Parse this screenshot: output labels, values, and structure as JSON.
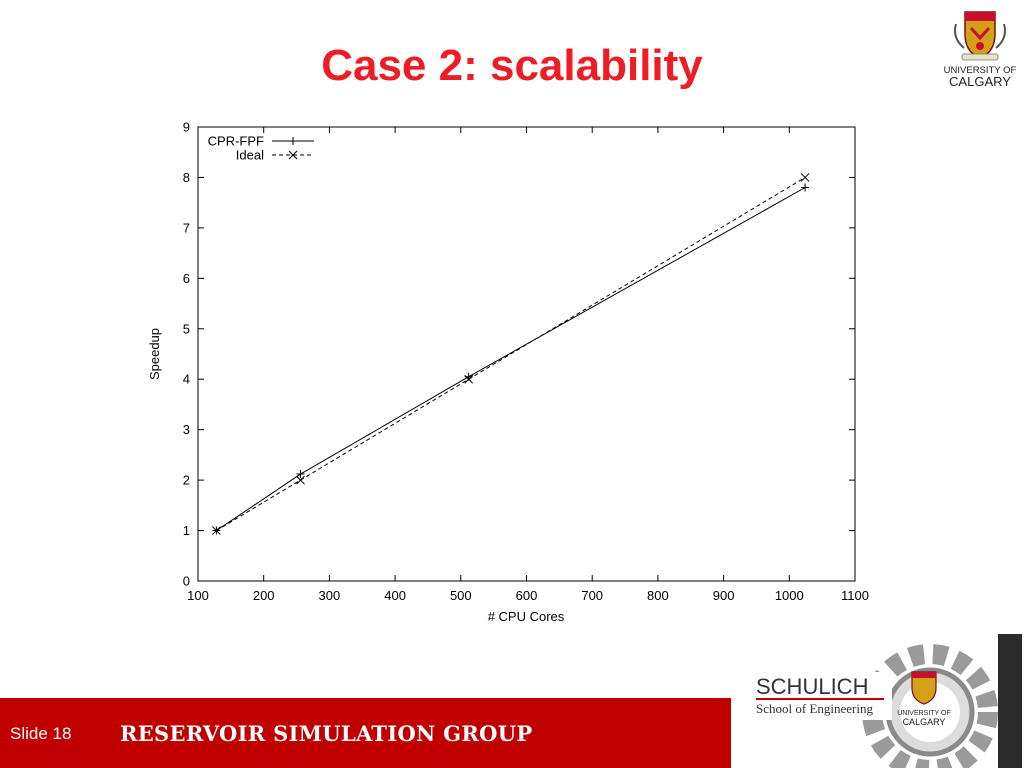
{
  "slide": {
    "title": "Case 2: scalability",
    "number_label": "Slide 18",
    "footer_text": "RESERVOIR SIMULATION GROUP",
    "colors": {
      "title": "#ee1c25",
      "footer_bar": "#c00000",
      "footer_text": "#ffffff"
    }
  },
  "logos": {
    "university": {
      "line1": "UNIVERSITY OF",
      "line2": "CALGARY",
      "icon": "coat-of-arms-icon"
    },
    "schulich": {
      "line1": "SCHULICH",
      "line2": "School of Engineering",
      "badge_line1": "UNIVERSITY OF",
      "badge_line2": "CALGARY",
      "icon": "gear-icon"
    }
  },
  "chart_data": {
    "type": "line",
    "title": "",
    "xlabel": "# CPU Cores",
    "ylabel": "Speedup",
    "xlim": [
      100,
      1100
    ],
    "ylim": [
      0,
      9
    ],
    "xticks": [
      100,
      200,
      300,
      400,
      500,
      600,
      700,
      800,
      900,
      1000,
      1100
    ],
    "yticks": [
      0,
      1,
      2,
      3,
      4,
      5,
      6,
      7,
      8,
      9
    ],
    "grid": false,
    "legend_position": "top-left",
    "series": [
      {
        "name": "CPR-FPF",
        "marker": "plus",
        "line_style": "solid",
        "x": [
          128,
          256,
          512,
          1024
        ],
        "y": [
          1,
          2.12,
          4.05,
          7.8
        ]
      },
      {
        "name": "Ideal",
        "marker": "cross",
        "line_style": "dashed",
        "x": [
          128,
          256,
          512,
          1024
        ],
        "y": [
          1,
          2,
          4,
          8
        ]
      }
    ]
  }
}
